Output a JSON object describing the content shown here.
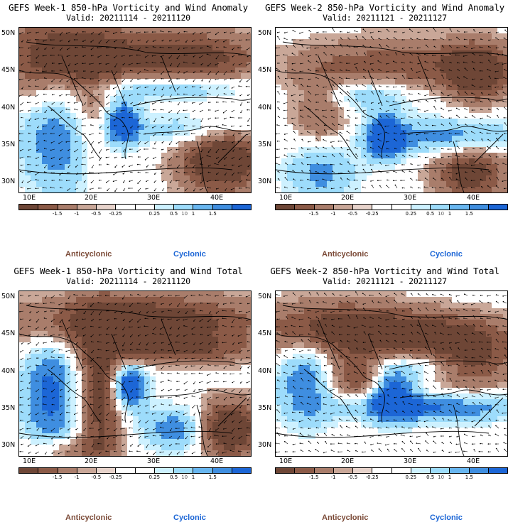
{
  "panels": [
    {
      "title": "GEFS Week-1 850-hPa Vorticity and Wind Anomaly",
      "valid": "Valid: 20211114 - 20211120",
      "pattern": 0
    },
    {
      "title": "GEFS Week-2 850-hPa Vorticity and Wind Anomaly",
      "valid": "Valid: 20211121 - 20211127",
      "pattern": 1
    },
    {
      "title": "GEFS Week-1 850-hPa Vorticity and Wind Total",
      "valid": "Valid: 20211114 - 20211120",
      "pattern": 2
    },
    {
      "title": "GEFS Week-2 850-hPa Vorticity and Wind Total",
      "valid": "Valid: 20211121 - 20211127",
      "pattern": 3
    }
  ],
  "axes": {
    "lat_labels": [
      "50N",
      "45N",
      "40N",
      "35N",
      "30N"
    ],
    "lon_labels": [
      "10E",
      "20E",
      "30E",
      "40E"
    ]
  },
  "colorbar": {
    "labels": [
      "-1.5",
      "-1",
      "-0.5",
      "-0.25",
      "0.25",
      "0.5",
      "1",
      "1.5"
    ],
    "unit_label": "10",
    "colors": [
      "#6e4636",
      "#8b5a47",
      "#a97d6b",
      "#c9a798",
      "#e7d3cb",
      "#ffffff",
      "#ffffff",
      "#cdf1ff",
      "#9ddcfb",
      "#68b6f0",
      "#3f8ee0",
      "#1c66d6"
    ]
  },
  "legend": {
    "anticyclonic": "Anticyclonic",
    "cyclonic": "Cyclonic",
    "anticyclonic_color": "#7b4a37",
    "cyclonic_color": "#1c66d6"
  }
}
